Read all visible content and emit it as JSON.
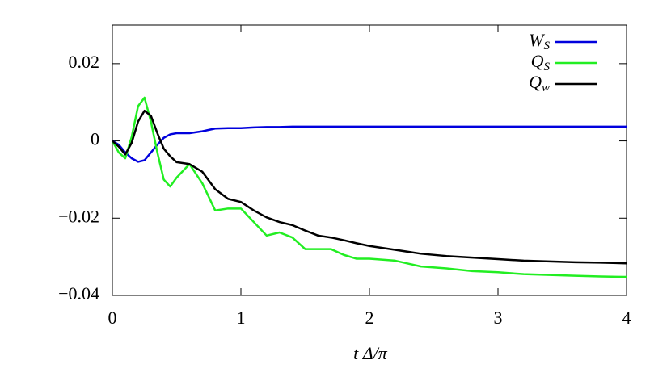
{
  "chart_data": {
    "type": "line",
    "x_label": "t Δ/π",
    "x": [
      0,
      0.05,
      0.1,
      0.15,
      0.2,
      0.25,
      0.3,
      0.35,
      0.4,
      0.45,
      0.5,
      0.6,
      0.7,
      0.8,
      0.9,
      1.0,
      1.1,
      1.2,
      1.3,
      1.4,
      1.5,
      1.6,
      1.7,
      1.8,
      1.9,
      2.0,
      2.2,
      2.4,
      2.6,
      2.8,
      3.0,
      3.2,
      3.4,
      3.6,
      3.8,
      4.0
    ],
    "series": [
      {
        "name": "W_S",
        "color": "#0000dd",
        "values": [
          0,
          -0.001,
          -0.003,
          -0.0045,
          -0.0054,
          -0.005,
          -0.003,
          -0.001,
          0.0008,
          0.0017,
          0.002,
          0.002,
          0.0025,
          0.0032,
          0.0033,
          0.0033,
          0.0035,
          0.0036,
          0.0036,
          0.0037,
          0.0037,
          0.0037,
          0.0037,
          0.0037,
          0.0037,
          0.0037,
          0.0037,
          0.0037,
          0.0037,
          0.0037,
          0.0037,
          0.0037,
          0.0037,
          0.0037,
          0.0037,
          0.0037
        ]
      },
      {
        "name": "Q_S",
        "color": "#22ee22",
        "values": [
          0,
          -0.003,
          -0.0045,
          0.001,
          0.009,
          0.0112,
          0.005,
          -0.003,
          -0.01,
          -0.0118,
          -0.0095,
          -0.006,
          -0.011,
          -0.018,
          -0.0175,
          -0.0175,
          -0.021,
          -0.0245,
          -0.0237,
          -0.025,
          -0.028,
          -0.028,
          -0.028,
          -0.0295,
          -0.0305,
          -0.0305,
          -0.031,
          -0.0325,
          -0.033,
          -0.0337,
          -0.034,
          -0.0345,
          -0.0347,
          -0.0349,
          -0.0351,
          -0.0352
        ]
      },
      {
        "name": "Q_w",
        "color": "#000000",
        "values": [
          0,
          -0.0015,
          -0.0035,
          -0.0005,
          0.005,
          0.0078,
          0.0065,
          0.002,
          -0.002,
          -0.004,
          -0.0055,
          -0.006,
          -0.008,
          -0.0125,
          -0.015,
          -0.0158,
          -0.018,
          -0.0198,
          -0.021,
          -0.0218,
          -0.0232,
          -0.0245,
          -0.025,
          -0.0257,
          -0.0265,
          -0.0272,
          -0.0282,
          -0.0292,
          -0.0298,
          -0.0302,
          -0.0306,
          -0.031,
          -0.0312,
          -0.0314,
          -0.0315,
          -0.0317
        ]
      }
    ],
    "xlim": [
      0,
      4
    ],
    "xticks": [
      0,
      1,
      2,
      3,
      4
    ],
    "ylim": [
      -0.04,
      0.03
    ],
    "yticks": [
      {
        "value": -0.04,
        "label": "−0.04"
      },
      {
        "value": -0.02,
        "label": "−0.02"
      },
      0,
      0.02
    ],
    "legend": "upper-right",
    "grid": false
  }
}
